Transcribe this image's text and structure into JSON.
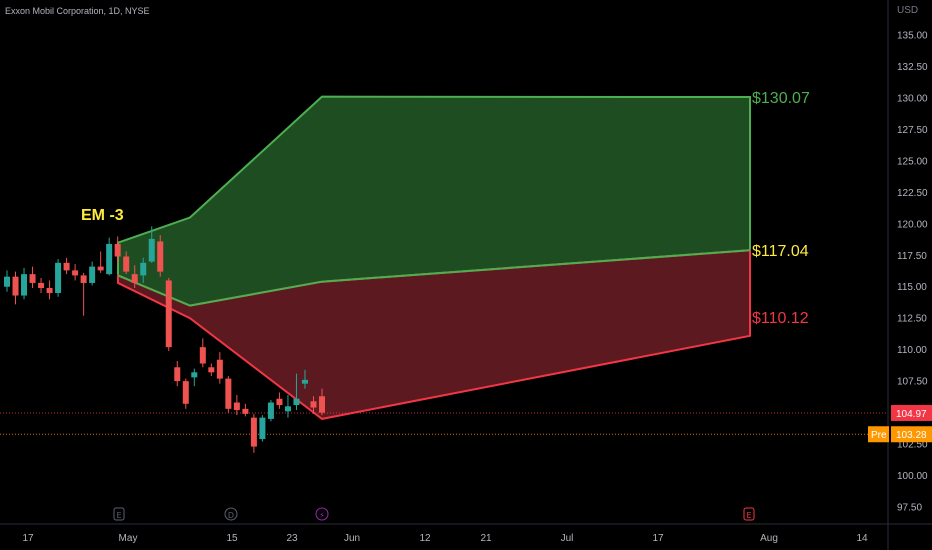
{
  "header": {
    "symbol_title": "Exxon Mobil Corporation, 1D, NYSE",
    "currency": "USD"
  },
  "chart_data": {
    "type": "candlestick",
    "title": "Exxon Mobil Corporation, 1D, NYSE",
    "y_axis": {
      "unit": "USD",
      "ticks": [
        "135.00",
        "132.50",
        "130.00",
        "127.50",
        "125.00",
        "122.50",
        "120.00",
        "117.50",
        "115.00",
        "112.50",
        "110.00",
        "107.50",
        "105.00",
        "102.50",
        "100.00",
        "97.50"
      ],
      "range": [
        96.5,
        136.0
      ]
    },
    "x_axis": {
      "ticks": [
        "17",
        "May",
        "15",
        "23",
        "Jun",
        "12",
        "21",
        "Jul",
        "17",
        "Aug",
        "14"
      ]
    },
    "candles": [
      {
        "o": 115.0,
        "h": 116.3,
        "l": 114.6,
        "c": 115.8
      },
      {
        "o": 115.8,
        "h": 116.2,
        "l": 113.6,
        "c": 114.3
      },
      {
        "o": 114.3,
        "h": 116.5,
        "l": 114.0,
        "c": 116.0
      },
      {
        "o": 116.0,
        "h": 116.6,
        "l": 114.9,
        "c": 115.3
      },
      {
        "o": 115.3,
        "h": 115.7,
        "l": 114.5,
        "c": 114.9
      },
      {
        "o": 114.9,
        "h": 115.5,
        "l": 114.0,
        "c": 114.5
      },
      {
        "o": 114.5,
        "h": 117.2,
        "l": 114.2,
        "c": 116.9
      },
      {
        "o": 116.9,
        "h": 117.3,
        "l": 116.0,
        "c": 116.3
      },
      {
        "o": 116.3,
        "h": 116.8,
        "l": 115.5,
        "c": 115.9
      },
      {
        "o": 115.9,
        "h": 116.1,
        "l": 112.7,
        "c": 115.3
      },
      {
        "o": 115.3,
        "h": 117.0,
        "l": 115.1,
        "c": 116.6
      },
      {
        "o": 116.6,
        "h": 117.8,
        "l": 116.1,
        "c": 116.3
      },
      {
        "o": 116.0,
        "h": 118.9,
        "l": 115.9,
        "c": 118.4
      },
      {
        "o": 118.4,
        "h": 119.0,
        "l": 116.9,
        "c": 117.4
      },
      {
        "o": 117.4,
        "h": 117.8,
        "l": 116.0,
        "c": 116.2
      },
      {
        "o": 116.0,
        "h": 116.7,
        "l": 114.9,
        "c": 115.3
      },
      {
        "o": 115.9,
        "h": 117.3,
        "l": 115.3,
        "c": 116.9
      },
      {
        "o": 117.0,
        "h": 119.8,
        "l": 116.9,
        "c": 118.8
      },
      {
        "o": 118.6,
        "h": 119.1,
        "l": 115.8,
        "c": 116.2
      },
      {
        "o": 115.5,
        "h": 115.7,
        "l": 109.9,
        "c": 110.2
      },
      {
        "o": 108.6,
        "h": 109.1,
        "l": 107.1,
        "c": 107.5
      },
      {
        "o": 107.5,
        "h": 107.7,
        "l": 105.3,
        "c": 105.7
      },
      {
        "o": 107.8,
        "h": 108.5,
        "l": 107.1,
        "c": 108.2
      },
      {
        "o": 110.2,
        "h": 110.9,
        "l": 108.6,
        "c": 108.9
      },
      {
        "o": 108.6,
        "h": 108.9,
        "l": 107.9,
        "c": 108.2
      },
      {
        "o": 109.2,
        "h": 109.8,
        "l": 107.3,
        "c": 107.7
      },
      {
        "o": 107.7,
        "h": 107.9,
        "l": 105.0,
        "c": 105.3
      },
      {
        "o": 105.8,
        "h": 106.4,
        "l": 104.8,
        "c": 105.2
      },
      {
        "o": 105.3,
        "h": 105.7,
        "l": 104.7,
        "c": 104.9
      },
      {
        "o": 104.6,
        "h": 104.9,
        "l": 101.8,
        "c": 102.3
      },
      {
        "o": 102.9,
        "h": 104.8,
        "l": 102.7,
        "c": 104.6
      },
      {
        "o": 104.5,
        "h": 106.0,
        "l": 104.3,
        "c": 105.8
      },
      {
        "o": 106.1,
        "h": 106.6,
        "l": 105.3,
        "c": 105.6
      },
      {
        "o": 105.1,
        "h": 106.4,
        "l": 104.6,
        "c": 105.5
      },
      {
        "o": 105.6,
        "h": 108.1,
        "l": 105.2,
        "c": 106.1
      },
      {
        "o": 107.3,
        "h": 108.4,
        "l": 106.9,
        "c": 107.6
      },
      {
        "o": 105.9,
        "h": 106.3,
        "l": 104.9,
        "c": 105.4
      },
      {
        "o": 106.3,
        "h": 106.9,
        "l": 104.8,
        "c": 105.0
      }
    ],
    "upper_zone": {
      "label": "$130.07",
      "top": [
        118.5,
        120.5,
        130.1,
        130.07
      ],
      "bottom": [
        115.9,
        113.5,
        115.4,
        117.9
      ]
    },
    "lower_zone": {
      "top": [
        115.9,
        113.5,
        115.4,
        117.9
      ],
      "bottom": [
        115.3,
        112.5,
        104.5,
        111.1
      ],
      "label": "$110.12"
    },
    "middle_label": "$117.04",
    "em_label": "EM -3",
    "price_lines": [
      {
        "label": "104.97",
        "value": 104.97
      },
      {
        "label": "103.28",
        "value": 103.28,
        "prefix": "Pre"
      }
    ],
    "event_icons": [
      {
        "name": "earnings-icon",
        "glyph": "E"
      },
      {
        "name": "dividend-icon",
        "glyph": "D"
      },
      {
        "name": "split-icon",
        "glyph": "⚡"
      },
      {
        "name": "earnings-icon",
        "glyph": "E"
      }
    ],
    "colors": {
      "up": "#26a69a",
      "down": "#ef5350",
      "upper_zone_fill": "#1f4d22",
      "upper_zone_stroke": "#4caf50",
      "lower_zone_fill": "#5c1a20",
      "lower_zone_stroke": "#f23645",
      "label_green": "#4caf50",
      "label_yellow": "#ffeb3b",
      "label_red": "#f23645",
      "badge_red": "#f23645",
      "badge_orange": "#ff9800"
    }
  }
}
